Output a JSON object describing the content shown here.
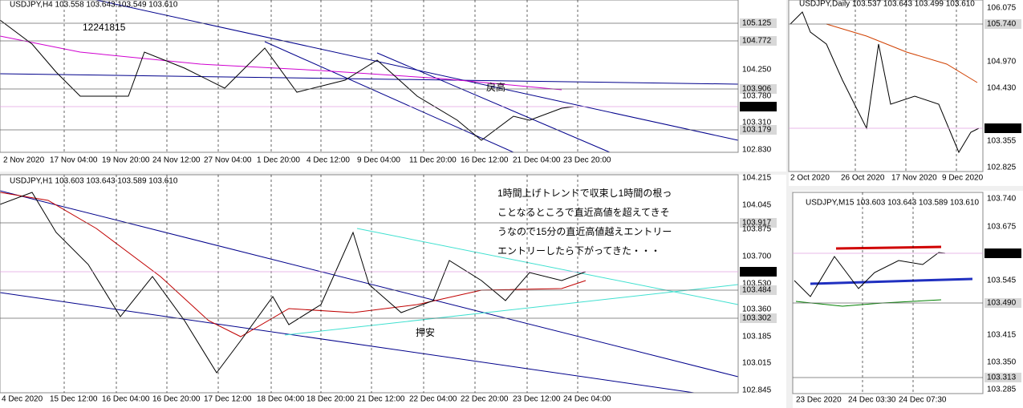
{
  "panels": [
    {
      "header": "USDJPY,H4  103.558 103.643 103.549 103.610",
      "axis_labels": [
        "105.125",
        "104.772",
        "104.250",
        "103.906",
        "103.780",
        "103.610",
        "103.310",
        "103.179",
        "102.830"
      ],
      "time_labels": [
        "2 Nov 2020",
        "17 Nov 04:00",
        "19 Nov 20:00",
        "24 Nov 12:00",
        "27 Nov 04:00",
        "1 Dec 20:00",
        "4 Dec 12:00",
        "9 Dec 04:00",
        "11 Dec 20:00",
        "16 Dec 12:00",
        "21 Dec 04:00",
        "23 Dec 20:00"
      ],
      "annotations": [
        "12241815",
        "戻高"
      ]
    },
    {
      "header": "USDJPY,Daily  103.537 103.643 103.499 103.610",
      "axis_labels": [
        "106.075",
        "105.740",
        "104.970",
        "104.430",
        "103.610",
        "103.355",
        "102.825"
      ],
      "time_labels": [
        "2 Oct 2020",
        "26 Oct 2020",
        "17 Nov 2020",
        "9 Dec 2020"
      ],
      "annotations": []
    },
    {
      "header": "USDJPY,H1  103.603 103.643 103.589 103.610",
      "axis_labels": [
        "104.215",
        "104.045",
        "103.917",
        "103.875",
        "103.700",
        "103.610",
        "103.530",
        "103.484",
        "103.360",
        "103.302",
        "103.185",
        "103.015",
        "102.845"
      ],
      "time_labels": [
        "4 Dec 2020",
        "15 Dec 12:00",
        "16 Dec 04:00",
        "16 Dec 20:00",
        "17 Dec 12:00",
        "18 Dec 04:00",
        "18 Dec 20:00",
        "21 Dec 12:00",
        "22 Dec 04:00",
        "22 Dec 20:00",
        "23 Dec 12:00",
        "24 Dec 04:00"
      ],
      "annotations": [
        "1時間上げトレンドで収束し1時間の根っ",
        "ことなるところで直近高値を超えてきそ",
        "うなので15分の直近高値越えエントリー",
        "エントリーしたら下がってきた・・・",
        "押安"
      ]
    },
    {
      "header": "USDJPY,M15  103.603 103.643 103.589 103.610",
      "axis_labels": [
        "103.740",
        "103.675",
        "103.610",
        "103.545",
        "103.490",
        "103.415",
        "103.350",
        "103.313",
        "103.285"
      ],
      "time_labels": [
        "23 Dec 2020",
        "24 Dec 03:30",
        "24 Dec 07:30"
      ],
      "annotations": []
    }
  ]
}
